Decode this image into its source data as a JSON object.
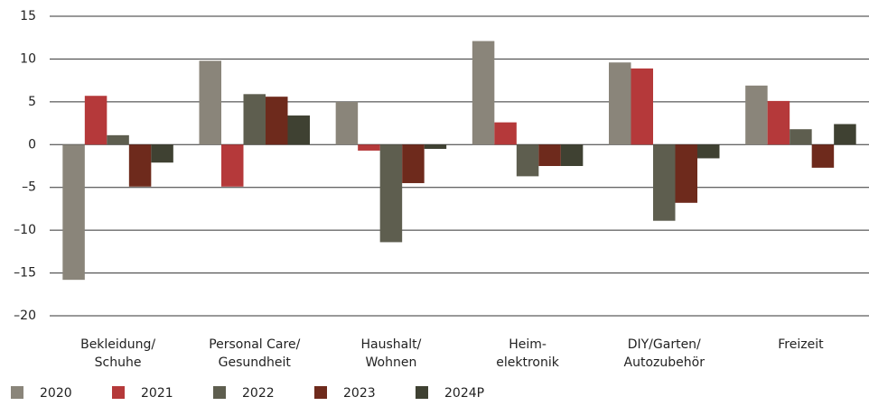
{
  "chart_data": {
    "type": "bar",
    "categories": [
      "Bekleidung/\nSchuhe",
      "Personal Care/\nGesundheit",
      "Haushalt/\nWohnen",
      "Heim-\nelektronik",
      "DIY/Garten/\nAutozubehör",
      "Freizeit"
    ],
    "series": [
      {
        "name": "2020",
        "color": "#8a857a",
        "values": [
          -15.8,
          9.8,
          5.0,
          12.1,
          9.6,
          6.9
        ]
      },
      {
        "name": "2021",
        "color": "#b5393a",
        "values": [
          5.7,
          -4.9,
          -0.7,
          2.6,
          8.9,
          5.1
        ]
      },
      {
        "name": "2022",
        "color": "#5e5e4f",
        "values": [
          1.1,
          5.9,
          -11.4,
          -3.7,
          -8.9,
          1.8
        ]
      },
      {
        "name": "2023",
        "color": "#6e2a1c",
        "values": [
          -4.9,
          5.6,
          -4.5,
          -2.5,
          -6.8,
          -2.7
        ]
      },
      {
        "name": "2024P",
        "color": "#3f4132",
        "values": [
          -2.1,
          3.4,
          -0.5,
          -2.5,
          -1.6,
          2.4
        ]
      }
    ],
    "ylim": [
      -20,
      15
    ],
    "yticks": [
      {
        "value": -20,
        "label": "–20"
      },
      {
        "value": -15,
        "label": "–15"
      },
      {
        "value": -10,
        "label": "–10"
      },
      {
        "value": -5,
        "label": "–5"
      },
      0,
      5,
      10,
      15
    ],
    "grid": true
  }
}
